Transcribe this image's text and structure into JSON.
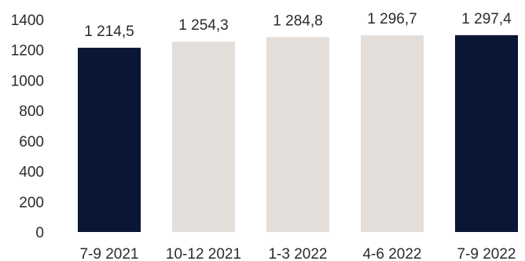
{
  "chart_data": {
    "type": "bar",
    "title": "",
    "xlabel": "",
    "ylabel": "",
    "ylim": [
      0,
      1400
    ],
    "yticks": [
      0,
      200,
      400,
      600,
      800,
      1000,
      1200,
      1400
    ],
    "grid": false,
    "categories": [
      "7-9 2021",
      "10-12 2021",
      "1-3 2022",
      "4-6 2022",
      "7-9 2022"
    ],
    "values": [
      1214.5,
      1254.3,
      1284.8,
      1296.7,
      1297.4
    ],
    "data_labels": [
      "1 214,5",
      "1 254,3",
      "1 284,8",
      "1 296,7",
      "1 297,4"
    ],
    "bar_colors": [
      "#0b1535",
      "#e3ded9",
      "#e3ded9",
      "#e3ded9",
      "#0b1535"
    ]
  }
}
